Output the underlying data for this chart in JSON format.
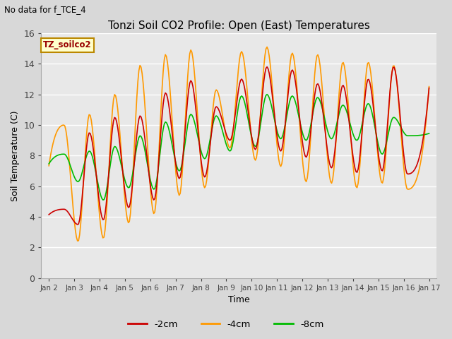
{
  "title": "Tonzi Soil CO2 Profile: Open (East) Temperatures",
  "subtitle": "No data for f_TCE_4",
  "xlabel": "Time",
  "ylabel": "Soil Temperature (C)",
  "legend_label": "TZ_soilco2",
  "series_labels": [
    "-2cm",
    "-4cm",
    "-8cm"
  ],
  "series_colors": [
    "#cc0000",
    "#ff9900",
    "#00bb00"
  ],
  "ylim": [
    0,
    16
  ],
  "xtick_labels": [
    "Jan 2",
    "Jan 3",
    "Jan 4",
    "Jan 5",
    "Jan 6",
    "Jan 7",
    "Jan 8",
    "Jan 9",
    "Jan 10",
    "Jan 11",
    "Jan 12",
    "Jan 13",
    "Jan 14",
    "Jan 15",
    "Jan 16",
    "Jan 17"
  ],
  "linewidth": 1.2,
  "legend_box_color": "#ffffcc",
  "legend_box_edge": "#bb8800",
  "peaks_4cm": [
    10.0,
    10.7,
    12.0,
    13.9,
    14.6,
    14.9,
    12.3,
    14.8,
    15.1,
    14.7,
    14.6,
    14.1,
    14.1,
    13.9
  ],
  "valleys_4cm": [
    2.4,
    2.6,
    3.6,
    4.2,
    5.4,
    5.9,
    8.5,
    7.7,
    7.3,
    6.3,
    6.2,
    5.9,
    6.2,
    5.8
  ],
  "peaks_2cm": [
    4.5,
    9.5,
    10.5,
    10.6,
    12.1,
    12.9,
    11.2,
    13.0,
    13.8,
    13.6,
    12.7,
    12.6,
    13.0,
    13.8
  ],
  "valleys_2cm": [
    3.5,
    3.8,
    4.6,
    5.1,
    6.5,
    6.6,
    9.0,
    8.4,
    8.3,
    7.9,
    7.2,
    6.9,
    7.0,
    6.8
  ],
  "peaks_8cm": [
    8.1,
    8.3,
    8.6,
    9.3,
    10.2,
    10.7,
    10.6,
    11.9,
    12.0,
    11.9,
    11.8,
    11.3,
    11.4,
    10.5
  ],
  "valleys_8cm": [
    6.3,
    5.1,
    5.9,
    5.8,
    7.0,
    7.8,
    8.3,
    8.6,
    9.1,
    9.0,
    9.1,
    9.0,
    8.1,
    9.3
  ]
}
